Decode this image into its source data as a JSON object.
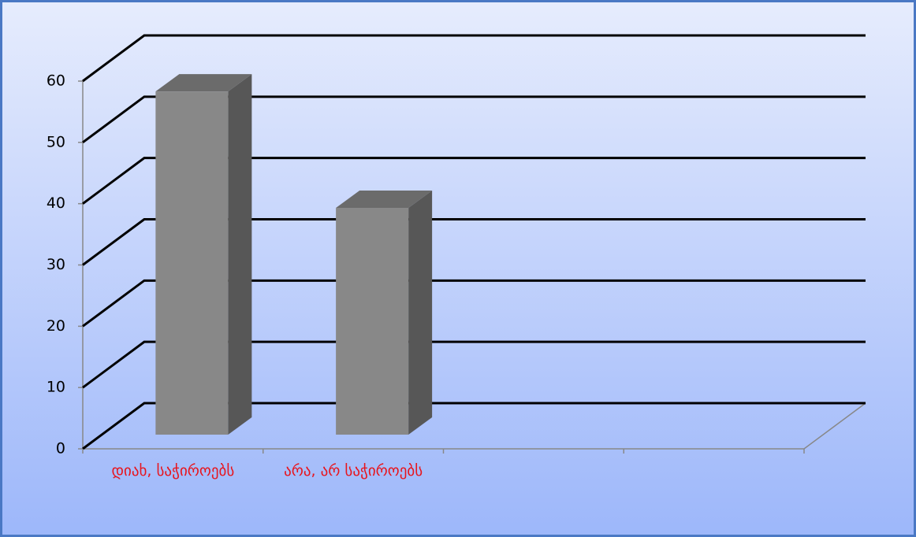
{
  "chart_data": {
    "type": "bar",
    "categories": [
      "დიახ, საჭიროებს",
      "არა, არ საჭიროებს",
      null,
      null
    ],
    "values": [
      56,
      37,
      null,
      null
    ],
    "color": "#888888",
    "ylim": [
      0,
      60
    ],
    "yticks": [
      0,
      10,
      20,
      30,
      40,
      50,
      60
    ],
    "grid": true
  }
}
